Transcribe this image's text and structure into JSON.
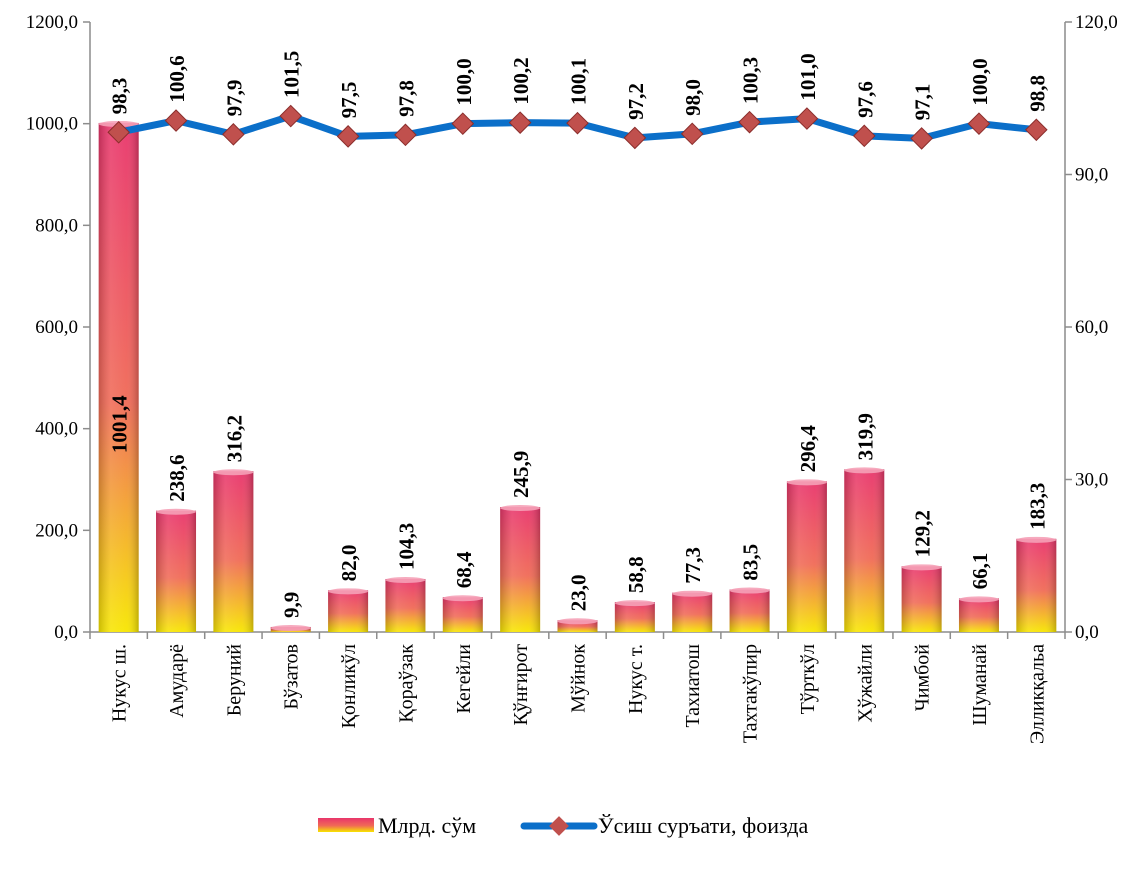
{
  "chart_data": {
    "type": "bar",
    "title": "",
    "categories": [
      "Нукус ш.",
      "Амударё",
      "Беруний",
      "Бўзатов",
      "Қонликўл",
      "Қораўзак",
      "Кегейли",
      "Қўнғирот",
      "Мўйнок",
      "Нукус т.",
      "Тахиатош",
      "Тахтакўпир",
      "Тўрткўл",
      "Хўжайли",
      "Чимбой",
      "Шуманай",
      "Элликқальа"
    ],
    "series": [
      {
        "name": "Млрд. сўм",
        "type": "bar",
        "axis": "left",
        "values": [
          1001.4,
          238.6,
          316.2,
          9.9,
          82.0,
          104.3,
          68.4,
          245.9,
          23.0,
          58.8,
          77.3,
          83.5,
          296.4,
          319.9,
          129.2,
          66.1,
          183.3
        ],
        "labels": [
          "1001,4",
          "238,6",
          "316,2",
          "9,9",
          "82,0",
          "104,3",
          "68,4",
          "245,9",
          "23,0",
          "58,8",
          "77,3",
          "83,5",
          "296,4",
          "319,9",
          "129,2",
          "66,1",
          "183,3"
        ]
      },
      {
        "name": "Ўсиш суръати, фоизда",
        "type": "line",
        "axis": "right",
        "values": [
          98.3,
          100.6,
          97.9,
          101.5,
          97.5,
          97.8,
          100.0,
          100.2,
          100.1,
          97.2,
          98.0,
          100.3,
          101.0,
          97.6,
          97.1,
          100.0,
          98.8
        ],
        "labels": [
          "98,3",
          "100,6",
          "97,9",
          "101,5",
          "97,5",
          "97,8",
          "100,0",
          "100,2",
          "100,1",
          "97,2",
          "98,0",
          "100,3",
          "101,0",
          "97,6",
          "97,1",
          "100,0",
          "98,8"
        ]
      }
    ],
    "y_left": {
      "min": 0,
      "max": 1200,
      "ticks": [
        "0,0",
        "200,0",
        "400,0",
        "600,0",
        "800,0",
        "1000,0",
        "1200,0"
      ]
    },
    "y_right": {
      "min": 0,
      "max": 120,
      "ticks": [
        "0,0",
        "30,0",
        "60,0",
        "90,0",
        "120,0"
      ]
    },
    "grid": false,
    "legend_position": "bottom",
    "colors": {
      "bar_top": "#e8356b",
      "bar_mid": "#f06a56",
      "bar_bottom": "#f7e600",
      "bar_cap": "#f5a1b7",
      "line": "#0b6fc9",
      "marker": "#c0504d",
      "axis": "#8c8c8c"
    }
  }
}
